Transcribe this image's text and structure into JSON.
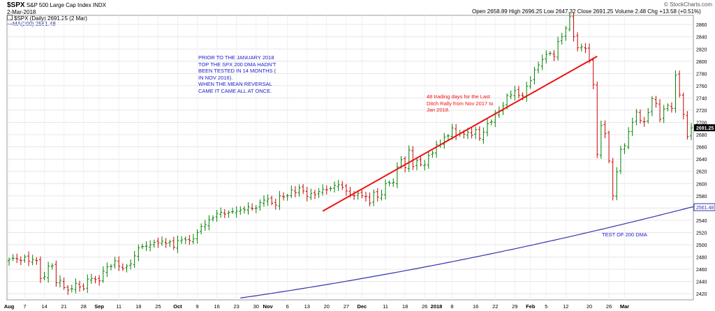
{
  "header": {
    "ticker": "$SPX",
    "name": "S&P 500 Large Cap Index",
    "exchange": "INDX",
    "date": "2-Mar-2018",
    "watermark": "© StockCharts.com",
    "ohlc": "Open 2658.89 High 2696.25 Low 2647.32 Close 2691.25 Volume 2.48 Chg +13.58 (+0.51%)",
    "legend_price": "$SPX (Daily) 2691.25 (2 Mar)",
    "legend_ma": "MA(200) 2561.48"
  },
  "annotations": {
    "note1": [
      "PRIOR TO THE JANUARY 2018",
      "TOP THE SPX 200 DMA HADN'T",
      "BEEN TESTED IN 14 MONTHS (",
      "IN NOV 2016).",
      "WHEN THE MEAN REVERSAL",
      "CAME IT CAME ALL AT ONCE."
    ],
    "note2": [
      "48 trading days for the Last",
      "Ditch Rally from Nov 2017 to",
      "Jan 2018."
    ],
    "note3": "TEST OF 200 DMA"
  },
  "chart_data": {
    "type": "ohlc-bar",
    "xlabels": [
      "Aug",
      "7",
      "14",
      "21",
      "28",
      "Sep",
      "11",
      "18",
      "25",
      "Oct",
      "9",
      "16",
      "23",
      "30",
      "Nov",
      "6",
      "13",
      "20",
      "27",
      "Dec",
      "11",
      "18",
      "26",
      "2018",
      "8",
      "16",
      "22",
      "29",
      "Feb",
      "5",
      "12",
      "20",
      "26",
      "Mar"
    ],
    "yticks": [
      2420,
      2440,
      2460,
      2480,
      2500,
      2520,
      2540,
      2560,
      2580,
      2600,
      2620,
      2640,
      2660,
      2680,
      2700,
      2720,
      2740,
      2760,
      2780,
      2800,
      2820,
      2840,
      2860
    ],
    "ylim": [
      2410,
      2875
    ],
    "last_price_label": "2691.25",
    "ma_label": "2561.48",
    "colors": {
      "up": "#008000",
      "down": "#cc0000",
      "ma": "#3333aa",
      "trend": "#ee1111",
      "ann_blue": "#1a1acc",
      "ann_red": "#ee1111",
      "grid": "#e6e6e6"
    },
    "closes": [
      2476,
      2478,
      2477,
      2474,
      2480,
      2473,
      2476,
      2474,
      2445,
      2448,
      2465,
      2466,
      2438,
      2442,
      2430,
      2426,
      2428,
      2437,
      2431,
      2428,
      2444,
      2445,
      2443,
      2441,
      2457,
      2464,
      2465,
      2474,
      2465,
      2461,
      2465,
      2469,
      2482,
      2495,
      2497,
      2498,
      2500,
      2504,
      2503,
      2506,
      2502,
      2505,
      2496,
      2507,
      2508,
      2508,
      2507,
      2510,
      2520,
      2530,
      2533,
      2541,
      2544,
      2551,
      2553,
      2550,
      2553,
      2554,
      2555,
      2557,
      2557,
      2562,
      2559,
      2560,
      2569,
      2573,
      2575,
      2568,
      2565,
      2580,
      2578,
      2580,
      2590,
      2585,
      2593,
      2588,
      2579,
      2584,
      2582,
      2587,
      2591,
      2590,
      2592,
      2597,
      2598,
      2594,
      2588,
      2582,
      2580,
      2584,
      2580,
      2579,
      2568,
      2586,
      2578,
      2582,
      2600,
      2601,
      2602,
      2627,
      2639,
      2626,
      2655,
      2628,
      2638,
      2631,
      2631,
      2646,
      2650,
      2664,
      2664,
      2676,
      2678,
      2691,
      2679,
      2682,
      2681,
      2684,
      2679,
      2688,
      2674,
      2684,
      2698,
      2701,
      2714,
      2718,
      2727,
      2744,
      2745,
      2752,
      2744,
      2743,
      2759,
      2768,
      2786,
      2794,
      2803,
      2811,
      2813,
      2808,
      2832,
      2840,
      2854,
      2873,
      2840,
      2822,
      2824,
      2821,
      2800,
      2762,
      2648,
      2695,
      2682,
      2637,
      2580,
      2619,
      2656,
      2662,
      2685,
      2700,
      2717,
      2703,
      2701,
      2716,
      2739,
      2731,
      2705,
      2722,
      2728,
      2723,
      2777,
      2745,
      2713,
      2677,
      2691
    ]
  }
}
